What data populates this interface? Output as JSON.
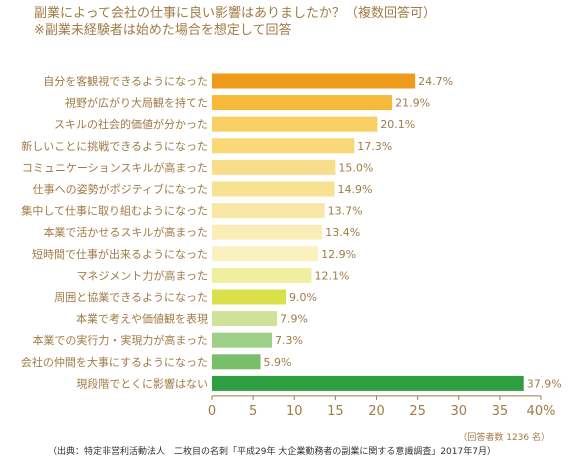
{
  "header": {
    "title": "副業によって会社の仕事に良い影響はありましたか？（複数回答可）",
    "subtitle": "※副業未経験者は始めた場合を想定して回答"
  },
  "chart_data": {
    "type": "bar",
    "orientation": "horizontal",
    "categories": [
      "自分を客観視できるようになった",
      "視野が広がり大局観を持てた",
      "スキルの社会的価値が分かった",
      "新しいことに挑戦できるようになった",
      "コミュニケーションスキルが高まった",
      "仕事への姿勢がポジティブになった",
      "集中して仕事に取り組むようになった",
      "本業で活かせるスキルが高まった",
      "短時間で仕事が出来るようになった",
      "マネジメント力が高まった",
      "周囲と協業できるようになった",
      "本業で考えや価値観を表現",
      "本業での実行力・実現力が高まった",
      "会社の仲間を大事にするようになった",
      "現段階でとくに影響はない"
    ],
    "values": [
      24.7,
      21.9,
      20.1,
      17.3,
      15.0,
      14.9,
      13.7,
      13.4,
      12.9,
      12.1,
      9.0,
      7.9,
      7.3,
      5.9,
      37.9
    ],
    "value_labels": [
      "24.7%",
      "21.9%",
      "20.1%",
      "17.3%",
      "15.0%",
      "14.9%",
      "13.7%",
      "13.4%",
      "12.9%",
      "12.1%",
      "9.0%",
      "7.9%",
      "7.3%",
      "5.9%",
      "37.9%"
    ],
    "colors": [
      "#ee9a1a",
      "#f6b93a",
      "#f7cf63",
      "#f8d877",
      "#f8de8a",
      "#f8e191",
      "#f9e8a5",
      "#faedb5",
      "#faf0c0",
      "#eef0a0",
      "#d9e04a",
      "#cfe29a",
      "#9fd08a",
      "#79bf6a",
      "#2f9e41"
    ],
    "xlim": [
      0,
      40
    ],
    "xticks": [
      0,
      5,
      10,
      15,
      20,
      25,
      30,
      35,
      40
    ],
    "xtick_labels": [
      "0",
      "5",
      "10",
      "15",
      "20",
      "25",
      "30",
      "35",
      "40%"
    ],
    "grid": false,
    "legend": "none"
  },
  "footnote": "（回答者数 1236 名）",
  "source": "（出典：特定非営利活動法人　二枚目の名刺「平成29年 大企業勤務者の副業に関する意識調査」2017年7月）"
}
